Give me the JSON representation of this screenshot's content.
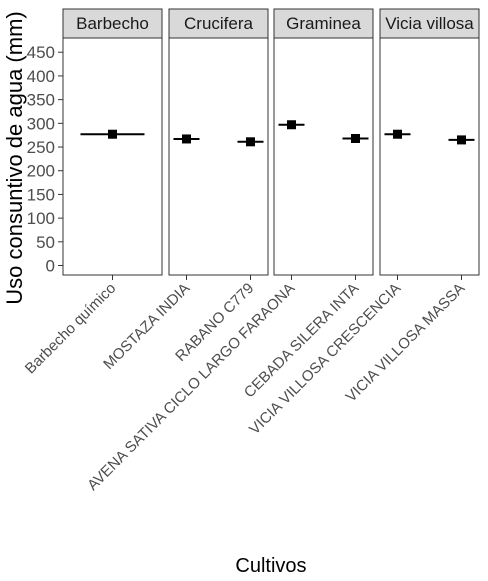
{
  "chart_data": {
    "type": "scatter",
    "title": "",
    "xlabel": "Cultivos",
    "ylabel": "Uso consuntivo de agua (mm)",
    "ylim": [
      -20,
      480
    ],
    "yticks": [
      0,
      50,
      100,
      150,
      200,
      250,
      300,
      350,
      400,
      450
    ],
    "grid": false,
    "legend": "none",
    "facets": [
      {
        "name": "Barbecho",
        "categories": [
          "Barbecho químico"
        ],
        "values": [
          277
        ]
      },
      {
        "name": "Crucifera",
        "categories": [
          "MOSTAZA INDIA",
          "RABANO C779"
        ],
        "values": [
          267,
          261
        ]
      },
      {
        "name": "Graminea",
        "categories": [
          "AVENA SATIVA CICLO LARGO FARAONA",
          "CEBADA SILERA INTA"
        ],
        "values": [
          297,
          268
        ]
      },
      {
        "name": "Vicia villosa",
        "categories": [
          "VICIA VILLOSA CRESCENCIA",
          "VICIA VILLOSA  MASSA"
        ],
        "values": [
          277,
          265
        ]
      }
    ],
    "colors": {
      "strip_fill": "#d9d9d9",
      "point": "#000000",
      "panel_border": "#333333",
      "tick_label": "#4d4d4d"
    }
  }
}
